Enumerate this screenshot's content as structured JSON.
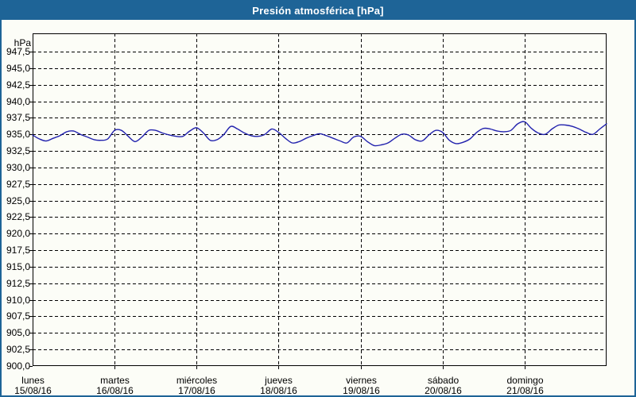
{
  "title_bar": {
    "text": "Presión atmosférica [hPa]"
  },
  "colors": {
    "accent": "#1e6497",
    "title_text": "#ffffff",
    "line": "#2121ad",
    "grid": "#000000",
    "frame": "#000000",
    "background": "#fcfdf7"
  },
  "axes": {
    "y_unit_label": "hPa",
    "y_tick_labels": [
      "947,5",
      "945,0",
      "942,5",
      "940,0",
      "937,5",
      "935,0",
      "932,5",
      "930,0",
      "927,5",
      "925,0",
      "922,5",
      "920,0",
      "917,5",
      "915,0",
      "912,5",
      "910,0",
      "907,5",
      "905,0",
      "902,5",
      "900,0"
    ],
    "x_days": [
      {
        "name": "lunes",
        "date": "15/08/16"
      },
      {
        "name": "martes",
        "date": "16/08/16"
      },
      {
        "name": "miércoles",
        "date": "17/08/16"
      },
      {
        "name": "jueves",
        "date": "18/08/16"
      },
      {
        "name": "viernes",
        "date": "19/08/16"
      },
      {
        "name": "sábado",
        "date": "20/08/16"
      },
      {
        "name": "domingo",
        "date": "21/08/16"
      }
    ]
  },
  "chart_data": {
    "type": "line",
    "title": "Presión atmosférica [hPa]",
    "xlabel": "",
    "ylabel": "hPa",
    "ylim": [
      900,
      950.3
    ],
    "ytick_step": 2.5,
    "grid": "dashed",
    "legend": "none",
    "x_categories": [
      "lunes 15/08/16",
      "martes 16/08/16",
      "miércoles 17/08/16",
      "jueves 18/08/16",
      "viernes 19/08/16",
      "sábado 20/08/16",
      "domingo 21/08/16"
    ],
    "sampling_hours": 2,
    "series": [
      {
        "name": "Presión atmosférica",
        "unit": "hPa",
        "values": [
          934.9,
          934.3,
          934.0,
          934.4,
          934.8,
          935.4,
          935.5,
          935.0,
          934.6,
          934.2,
          934.1,
          934.3,
          935.6,
          935.6,
          934.7,
          933.9,
          934.6,
          935.6,
          935.6,
          935.2,
          934.9,
          934.7,
          934.7,
          935.5,
          936.0,
          935.2,
          934.1,
          934.2,
          935.0,
          936.2,
          935.8,
          935.2,
          934.8,
          934.7,
          935.0,
          935.8,
          935.3,
          934.4,
          933.7,
          933.9,
          934.4,
          934.8,
          935.1,
          934.8,
          934.4,
          934.0,
          933.7,
          934.6,
          934.7,
          933.9,
          933.3,
          933.4,
          933.7,
          934.4,
          935.0,
          934.9,
          934.2,
          934.0,
          934.9,
          935.6,
          935.3,
          934.1,
          933.6,
          933.8,
          934.3,
          935.3,
          935.9,
          935.8,
          935.5,
          935.4,
          935.6,
          936.6,
          936.9,
          935.9,
          935.2,
          935.0,
          935.8,
          936.4,
          936.4,
          936.2,
          935.8,
          935.3,
          935.0,
          935.8,
          936.6
        ]
      }
    ]
  }
}
